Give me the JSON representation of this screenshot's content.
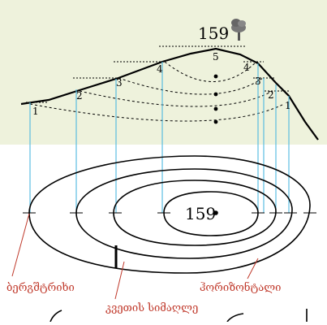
{
  "peak_elevation": "159",
  "map_center_elevation": "159",
  "contour_numbers": [
    "1",
    "2",
    "3",
    "4",
    "5",
    "4",
    "3",
    "2",
    "1"
  ],
  "labels": {
    "slope_line": "ბერგშტრიხი",
    "contour_line": "ჰორიზონტალი",
    "section_height": "კვეთის სიმაღლე"
  },
  "colors": {
    "profile_background": "#eef2dc",
    "projection_lines": "#4db8e0",
    "label_color": "#c0392b",
    "line_color": "#000000"
  },
  "icons": {
    "summit": "tree-icon"
  }
}
